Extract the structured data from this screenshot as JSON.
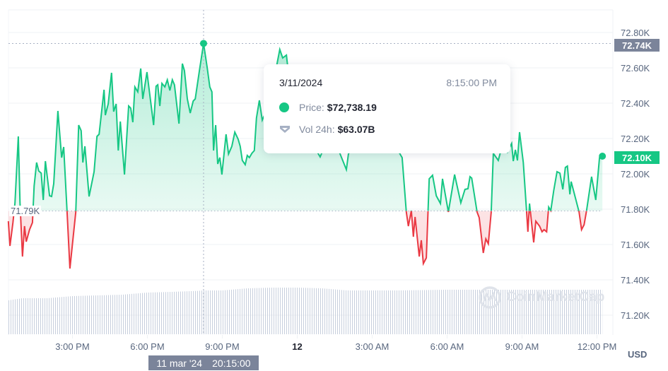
{
  "colors": {
    "up": "#16c784",
    "down": "#ea3943",
    "crosshair_label": "#7b849a",
    "grid": "#eff2f5",
    "volume": "#cfd6e4"
  },
  "icons": {
    "price_marker": "green-dot",
    "volume_marker": "volume-shield-icon",
    "watermark": "coinmarketcap-logo"
  },
  "tooltip": {
    "date": "3/11/2024",
    "time": "8:15:00 PM",
    "price_label": "Price:",
    "price_value": "$72,738.19",
    "vol_label": "Vol 24h:",
    "vol_value": "$63.07B"
  },
  "crosshair": {
    "x_label_date": "11 mar '24",
    "x_label_time": "20:15:00",
    "y_label": "72.74K"
  },
  "current_price_label": "72.10K",
  "baseline_label": "71.79K",
  "currency": "USD",
  "watermark": "CoinMarketCap",
  "chart_data": {
    "type": "line",
    "baseline": 71790,
    "ylim": [
      71100,
      72850
    ],
    "yticks": [
      72800,
      72600,
      72400,
      72200,
      72000,
      71800,
      71600,
      71400,
      71200
    ],
    "ytick_labels": [
      "72.80K",
      "72.60K",
      "72.40K",
      "72.20K",
      "72.00K",
      "71.80K",
      "71.60K",
      "71.40K",
      "71.20K"
    ],
    "xticks": [
      {
        "t": "2024-03-11T15:00",
        "label": "3:00 PM",
        "bold": false
      },
      {
        "t": "2024-03-11T18:00",
        "label": "6:00 PM",
        "bold": false
      },
      {
        "t": "2024-03-11T21:00",
        "label": "9:00 PM",
        "bold": false
      },
      {
        "t": "2024-03-12T00:00",
        "label": "12",
        "bold": true
      },
      {
        "t": "2024-03-12T03:00",
        "label": "3:00 AM",
        "bold": false
      },
      {
        "t": "2024-03-12T06:00",
        "label": "6:00 AM",
        "bold": false
      },
      {
        "t": "2024-03-12T09:00",
        "label": "9:00 AM",
        "bold": false
      },
      {
        "t": "2024-03-12T12:00",
        "label": "12:00 PM",
        "bold": false
      }
    ],
    "xlim": [
      "2024-03-11T12:19",
      "2024-03-12T12:22"
    ],
    "highlight": {
      "t": "2024-03-11T20:15",
      "price": 72738.19
    },
    "price": [
      [
        "2024-03-11T12:26",
        71732
      ],
      [
        "2024-03-11T12:30",
        71592
      ],
      [
        "2024-03-11T12:37",
        71724
      ],
      [
        "2024-03-11T12:42",
        71836
      ],
      [
        "2024-03-11T12:50",
        72212
      ],
      [
        "2024-03-11T12:54",
        71836
      ],
      [
        "2024-03-11T13:00",
        71532
      ],
      [
        "2024-03-11T13:05",
        71704
      ],
      [
        "2024-03-11T13:09",
        71616
      ],
      [
        "2024-03-11T13:17",
        71684
      ],
      [
        "2024-03-11T13:24",
        71724
      ],
      [
        "2024-03-11T13:28",
        71932
      ],
      [
        "2024-03-11T13:34",
        72064
      ],
      [
        "2024-03-11T13:39",
        72016
      ],
      [
        "2024-03-11T13:45",
        72004
      ],
      [
        "2024-03-11T13:50",
        71852
      ],
      [
        "2024-03-11T13:55",
        72072
      ],
      [
        "2024-03-11T14:05",
        71876
      ],
      [
        "2024-03-11T14:10",
        71872
      ],
      [
        "2024-03-11T14:15",
        71944
      ],
      [
        "2024-03-11T14:25",
        72356
      ],
      [
        "2024-03-11T14:34",
        72092
      ],
      [
        "2024-03-11T14:39",
        72152
      ],
      [
        "2024-03-11T14:47",
        71792
      ],
      [
        "2024-03-11T14:54",
        71464
      ],
      [
        "2024-03-11T15:08",
        71784
      ],
      [
        "2024-03-11T15:15",
        72276
      ],
      [
        "2024-03-11T15:21",
        72244
      ],
      [
        "2024-03-11T15:25",
        72064
      ],
      [
        "2024-03-11T15:30",
        72156
      ],
      [
        "2024-03-11T15:40",
        71872
      ],
      [
        "2024-03-11T15:52",
        72012
      ],
      [
        "2024-03-11T15:59",
        72212
      ],
      [
        "2024-03-11T16:04",
        72224
      ],
      [
        "2024-03-11T16:16",
        72476
      ],
      [
        "2024-03-11T16:19",
        72332
      ],
      [
        "2024-03-11T16:26",
        72396
      ],
      [
        "2024-03-11T16:34",
        72572
      ],
      [
        "2024-03-11T16:39",
        72352
      ],
      [
        "2024-03-11T16:45",
        72396
      ],
      [
        "2024-03-11T16:50",
        72132
      ],
      [
        "2024-03-11T16:55",
        72296
      ],
      [
        "2024-03-11T17:05",
        71996
      ],
      [
        "2024-03-11T17:15",
        72384
      ],
      [
        "2024-03-11T17:20",
        72372
      ],
      [
        "2024-03-11T17:25",
        72292
      ],
      [
        "2024-03-11T17:30",
        72492
      ],
      [
        "2024-03-11T17:37",
        72464
      ],
      [
        "2024-03-11T17:44",
        72596
      ],
      [
        "2024-03-11T17:49",
        72424
      ],
      [
        "2024-03-11T17:59",
        72576
      ],
      [
        "2024-03-11T18:15",
        72276
      ],
      [
        "2024-03-11T18:21",
        72496
      ],
      [
        "2024-03-11T18:25",
        72504
      ],
      [
        "2024-03-11T18:30",
        72384
      ],
      [
        "2024-03-11T18:35",
        72512
      ],
      [
        "2024-03-11T18:42",
        72492
      ],
      [
        "2024-03-11T18:48",
        72532
      ],
      [
        "2024-03-11T18:54",
        72472
      ],
      [
        "2024-03-11T19:00",
        72532
      ],
      [
        "2024-03-11T19:05",
        72504
      ],
      [
        "2024-03-11T19:16",
        72284
      ],
      [
        "2024-03-11T19:24",
        72624
      ],
      [
        "2024-03-11T19:29",
        72584
      ],
      [
        "2024-03-11T19:36",
        72424
      ],
      [
        "2024-03-11T19:43",
        72344
      ],
      [
        "2024-03-11T19:50",
        72412
      ],
      [
        "2024-03-11T19:55",
        72424
      ],
      [
        "2024-03-11T20:05",
        72584
      ],
      [
        "2024-03-11T20:15",
        72738.19
      ],
      [
        "2024-03-11T20:24",
        72596
      ],
      [
        "2024-03-11T20:30",
        72492
      ],
      [
        "2024-03-11T20:35",
        72464
      ],
      [
        "2024-03-11T20:39",
        72132
      ],
      [
        "2024-03-11T20:44",
        72276
      ],
      [
        "2024-03-11T20:49",
        72056
      ],
      [
        "2024-03-11T20:54",
        72092
      ],
      [
        "2024-03-11T20:59",
        71996
      ],
      [
        "2024-03-11T21:09",
        72224
      ],
      [
        "2024-03-11T21:15",
        72112
      ],
      [
        "2024-03-11T21:23",
        72156
      ],
      [
        "2024-03-11T21:30",
        72236
      ],
      [
        "2024-03-11T21:38",
        72196
      ],
      [
        "2024-03-11T21:43",
        72156
      ],
      [
        "2024-03-11T21:48",
        72076
      ],
      [
        "2024-03-11T21:55",
        72052
      ],
      [
        "2024-03-11T22:00",
        72104
      ],
      [
        "2024-03-11T22:05",
        72092
      ],
      [
        "2024-03-11T22:11",
        72116
      ],
      [
        "2024-03-11T22:17",
        72132
      ],
      [
        "2024-03-11T22:22",
        72316
      ],
      [
        "2024-03-11T22:29",
        72416
      ],
      [
        "2024-03-11T22:36",
        72304
      ],
      [
        "2024-03-11T22:51",
        72384
      ],
      [
        "2024-03-11T23:05",
        72544
      ],
      [
        "2024-03-11T23:18",
        72704
      ],
      [
        "2024-03-11T23:25",
        72656
      ],
      [
        "2024-03-11T23:34",
        72672
      ],
      [
        "2024-03-11T23:42",
        72504
      ],
      [
        "2024-03-11T23:59",
        72384
      ],
      [
        "2024-03-12T00:16",
        72304
      ],
      [
        "2024-03-12T00:33",
        72184
      ],
      [
        "2024-03-12T00:55",
        72096
      ],
      [
        "2024-03-12T01:07",
        72164
      ],
      [
        "2024-03-12T01:24",
        72204
      ],
      [
        "2024-03-12T01:41",
        72124
      ],
      [
        "2024-03-12T01:58",
        72024
      ],
      [
        "2024-03-12T02:03",
        72112
      ],
      [
        "2024-03-12T02:23",
        72204
      ],
      [
        "2024-03-12T02:49",
        72244
      ],
      [
        "2024-03-12T03:14",
        72184
      ],
      [
        "2024-03-12T03:40",
        72224
      ],
      [
        "2024-03-12T04:09",
        72104
      ],
      [
        "2024-03-12T04:12",
        72092
      ],
      [
        "2024-03-12T04:22",
        71784
      ],
      [
        "2024-03-12T04:27",
        71704
      ],
      [
        "2024-03-12T04:34",
        71792
      ],
      [
        "2024-03-12T04:39",
        71644
      ],
      [
        "2024-03-12T04:43",
        71756
      ],
      [
        "2024-03-12T04:53",
        71532
      ],
      [
        "2024-03-12T04:58",
        71624
      ],
      [
        "2024-03-12T05:03",
        71492
      ],
      [
        "2024-03-12T05:10",
        71524
      ],
      [
        "2024-03-12T05:17",
        71972
      ],
      [
        "2024-03-12T05:25",
        71992
      ],
      [
        "2024-03-12T05:34",
        71876
      ],
      [
        "2024-03-12T05:44",
        71832
      ],
      [
        "2024-03-12T05:49",
        71972
      ],
      [
        "2024-03-12T06:03",
        71784
      ],
      [
        "2024-03-12T06:18",
        71996
      ],
      [
        "2024-03-12T06:33",
        71836
      ],
      [
        "2024-03-12T06:43",
        71912
      ],
      [
        "2024-03-12T06:50",
        71916
      ],
      [
        "2024-03-12T06:55",
        71984
      ],
      [
        "2024-03-12T06:59",
        71976
      ],
      [
        "2024-03-12T07:12",
        71784
      ],
      [
        "2024-03-12T07:17",
        71752
      ],
      [
        "2024-03-12T07:27",
        71552
      ],
      [
        "2024-03-12T07:33",
        71632
      ],
      [
        "2024-03-12T07:39",
        71604
      ],
      [
        "2024-03-12T07:46",
        71784
      ],
      [
        "2024-03-12T07:51",
        72116
      ],
      [
        "2024-03-12T08:03",
        72076
      ],
      [
        "2024-03-12T08:15",
        72184
      ],
      [
        "2024-03-12T08:25",
        72124
      ],
      [
        "2024-03-12T08:35",
        72172
      ],
      [
        "2024-03-12T08:39",
        72072
      ],
      [
        "2024-03-12T08:44",
        72136
      ],
      [
        "2024-03-12T08:49",
        72076
      ],
      [
        "2024-03-12T08:54",
        72236
      ],
      [
        "2024-03-12T09:03",
        72064
      ],
      [
        "2024-03-12T09:11",
        71784
      ],
      [
        "2024-03-12T09:14",
        71672
      ],
      [
        "2024-03-12T09:18",
        71832
      ],
      [
        "2024-03-12T09:28",
        71612
      ],
      [
        "2024-03-12T09:33",
        71732
      ],
      [
        "2024-03-12T09:42",
        71704
      ],
      [
        "2024-03-12T09:48",
        71672
      ],
      [
        "2024-03-12T09:53",
        71684
      ],
      [
        "2024-03-12T09:59",
        71672
      ],
      [
        "2024-03-12T10:04",
        71812
      ],
      [
        "2024-03-12T10:09",
        71792
      ],
      [
        "2024-03-12T10:16",
        71904
      ],
      [
        "2024-03-12T10:24",
        72012
      ],
      [
        "2024-03-12T10:31",
        72004
      ],
      [
        "2024-03-12T10:38",
        71912
      ],
      [
        "2024-03-12T10:44",
        72036
      ],
      [
        "2024-03-12T10:49",
        72044
      ],
      [
        "2024-03-12T10:55",
        71884
      ],
      [
        "2024-03-12T10:58",
        71956
      ],
      [
        "2024-03-12T11:06",
        71884
      ],
      [
        "2024-03-12T11:17",
        71784
      ],
      [
        "2024-03-12T11:23",
        71684
      ],
      [
        "2024-03-12T11:29",
        71712
      ],
      [
        "2024-03-12T11:35",
        71792
      ],
      [
        "2024-03-12T11:47",
        71984
      ],
      [
        "2024-03-12T11:57",
        71852
      ],
      [
        "2024-03-12T12:06",
        72092
      ],
      [
        "2024-03-12T12:13",
        72100
      ]
    ],
    "volume_24h_billions": [
      [
        "2024-03-11T12:26",
        48.8
      ],
      [
        "2024-03-11T13:00",
        51.9
      ],
      [
        "2024-03-11T14:00",
        51.9
      ],
      [
        "2024-03-11T15:00",
        54.9
      ],
      [
        "2024-03-11T16:00",
        55.9
      ],
      [
        "2024-03-11T17:00",
        57.0
      ],
      [
        "2024-03-11T18:00",
        60.0
      ],
      [
        "2024-03-11T19:00",
        61.0
      ],
      [
        "2024-03-11T20:00",
        62.5
      ],
      [
        "2024-03-11T20:15",
        63.07
      ],
      [
        "2024-03-11T21:00",
        63.1
      ],
      [
        "2024-03-11T22:00",
        66.1
      ],
      [
        "2024-03-11T23:00",
        67.1
      ],
      [
        "2024-03-12T00:00",
        67.1
      ],
      [
        "2024-03-12T01:00",
        66.1
      ],
      [
        "2024-03-12T02:00",
        63.1
      ],
      [
        "2024-03-12T03:00",
        63.1
      ],
      [
        "2024-03-12T04:00",
        63.1
      ],
      [
        "2024-03-12T05:00",
        63.6
      ],
      [
        "2024-03-12T06:00",
        64.1
      ],
      [
        "2024-03-12T09:00",
        64.1
      ],
      [
        "2024-03-12T12:13",
        64.1
      ]
    ]
  }
}
